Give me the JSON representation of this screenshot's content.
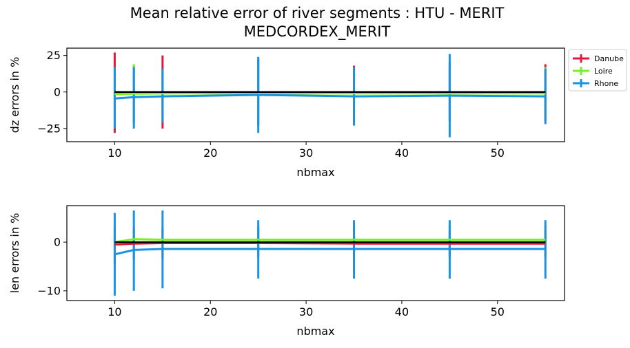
{
  "figure": {
    "title_line1": "Mean relative error of river segments : HTU - MERIT",
    "title_line2": "MEDCORDEX_MERIT"
  },
  "chart_data": [
    {
      "type": "line",
      "panel": "top",
      "xlabel": "nbmax",
      "ylabel": "dz errors in %",
      "xlim": [
        5,
        57
      ],
      "ylim": [
        -34,
        30
      ],
      "xticks": [
        10,
        20,
        30,
        40,
        50
      ],
      "yticks": [
        25,
        0,
        -25
      ],
      "x": [
        10,
        12,
        15,
        25,
        35,
        45,
        55
      ],
      "grid": false,
      "legend": "outside-right",
      "series": [
        {
          "name": "Danube",
          "color": "#e8173a",
          "values": [
            0,
            -0.5,
            -0.8,
            -0.8,
            -0.8,
            -0.8,
            -0.8
          ],
          "err_low": [
            -28,
            -21,
            -25,
            -23,
            -20,
            -20,
            -20
          ],
          "err_high": [
            27,
            18,
            25,
            23,
            18,
            20,
            19
          ]
        },
        {
          "name": "Loire",
          "color": "#77f21c",
          "values": [
            -1.5,
            -1.2,
            -1.0,
            -1.0,
            -1.0,
            -1.0,
            -1.0
          ],
          "err_low": [
            -22,
            -18,
            -17,
            -19,
            -18,
            -18,
            -18
          ],
          "err_high": [
            17,
            19,
            15,
            19,
            16,
            17,
            17
          ]
        },
        {
          "name": "Rhone",
          "color": "#1792e8",
          "values": [
            -4.5,
            -3.5,
            -3.0,
            -2.0,
            -3.0,
            -2.5,
            -3.0
          ],
          "err_low": [
            -25,
            -25,
            -21,
            -28,
            -23,
            -31,
            -22
          ],
          "err_high": [
            17,
            17,
            16,
            24,
            17,
            26,
            16
          ]
        },
        {
          "name": "",
          "color": "#000000",
          "values": [
            0,
            0,
            0,
            0,
            0,
            0,
            0
          ]
        }
      ]
    },
    {
      "type": "line",
      "panel": "bottom",
      "xlabel": "nbmax",
      "ylabel": "len errors in %",
      "xlim": [
        5,
        57
      ],
      "ylim": [
        -12,
        7.5
      ],
      "xticks": [
        10,
        20,
        30,
        40,
        50
      ],
      "yticks": [
        0,
        -10
      ],
      "x": [
        10,
        12,
        15,
        25,
        35,
        45,
        55
      ],
      "grid": false,
      "series": [
        {
          "name": "Danube",
          "color": "#e8173a",
          "values": [
            -0.5,
            -0.3,
            -0.2,
            -0.2,
            -0.3,
            -0.3,
            -0.3
          ],
          "err_low": [
            -4.5,
            -3.5,
            -3.5,
            -3.0,
            -3.0,
            -3.0,
            -3.0
          ],
          "err_high": [
            3,
            3,
            3,
            3,
            3,
            2.5,
            2.5
          ]
        },
        {
          "name": "Loire",
          "color": "#77f21c",
          "values": [
            0,
            0.6,
            0.5,
            0.5,
            0.5,
            0.5,
            0.5
          ],
          "err_low": [
            -3.5,
            -2.5,
            -2.5,
            -2.5,
            -2.5,
            -2.5,
            -2.5
          ],
          "err_high": [
            3,
            3,
            3,
            3.5,
            3.5,
            3.5,
            3.5
          ]
        },
        {
          "name": "Rhone",
          "color": "#1792e8",
          "values": [
            -2.5,
            -1.6,
            -1.4,
            -1.4,
            -1.4,
            -1.4,
            -1.4
          ],
          "err_low": [
            -11,
            -10,
            -9.5,
            -7.5,
            -7.5,
            -7.5,
            -7.5
          ],
          "err_high": [
            6,
            6.5,
            6.5,
            4.5,
            4.5,
            4.5,
            4.5
          ]
        },
        {
          "name": "",
          "color": "#000000",
          "values": [
            0,
            0,
            0,
            0,
            0,
            0,
            0
          ]
        }
      ]
    }
  ]
}
